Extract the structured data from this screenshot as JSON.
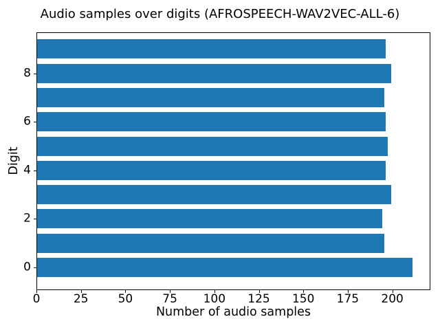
{
  "chart_data": {
    "type": "bar",
    "orientation": "horizontal",
    "title": "Audio samples over digits (AFROSPEECH-WAV2VEC-ALL-6)",
    "xlabel": "Number of audio samples",
    "ylabel": "Digit",
    "categories": [
      "0",
      "1",
      "2",
      "3",
      "4",
      "5",
      "6",
      "7",
      "8",
      "9"
    ],
    "values": [
      211,
      195,
      194,
      199,
      196,
      197,
      196,
      195,
      199,
      196
    ],
    "xlim": [
      0,
      221.4
    ],
    "xticks": [
      0,
      25,
      50,
      75,
      100,
      125,
      150,
      175,
      200
    ],
    "yticks": [
      0,
      2,
      4,
      6,
      8
    ],
    "bar_color": "#1f77b4",
    "bar_height_fraction": 0.8,
    "grid": false,
    "legend_position": "none",
    "spines": "all",
    "background_color": "#ffffff"
  }
}
